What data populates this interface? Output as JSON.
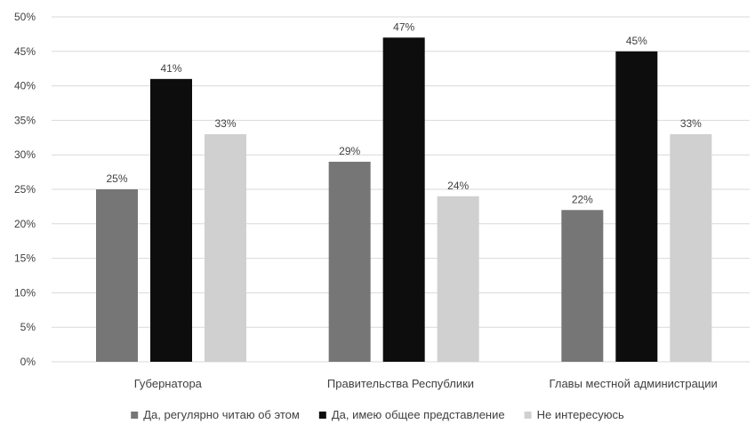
{
  "chart_data": {
    "type": "bar",
    "title": "",
    "xlabel": "",
    "ylabel": "",
    "ylim": [
      0,
      50
    ],
    "y_tick_step": 5,
    "y_tick_suffix": "%",
    "grid": "horizontal",
    "legend_position": "bottom",
    "categories": [
      "Губернатора",
      "Правительства Республики",
      "Главы местной администрации"
    ],
    "series": [
      {
        "name": "Да, регулярно читаю об этом",
        "values": [
          25,
          29,
          22
        ],
        "color": "#767676"
      },
      {
        "name": "Да, имею общее представление",
        "values": [
          41,
          47,
          45
        ],
        "color": "#0d0d0d"
      },
      {
        "name": "Не интересуюсь",
        "values": [
          33,
          24,
          33
        ],
        "color": "#d0d0d0"
      }
    ],
    "grid_color": "#d9d9d9",
    "text_color": "#404040"
  }
}
